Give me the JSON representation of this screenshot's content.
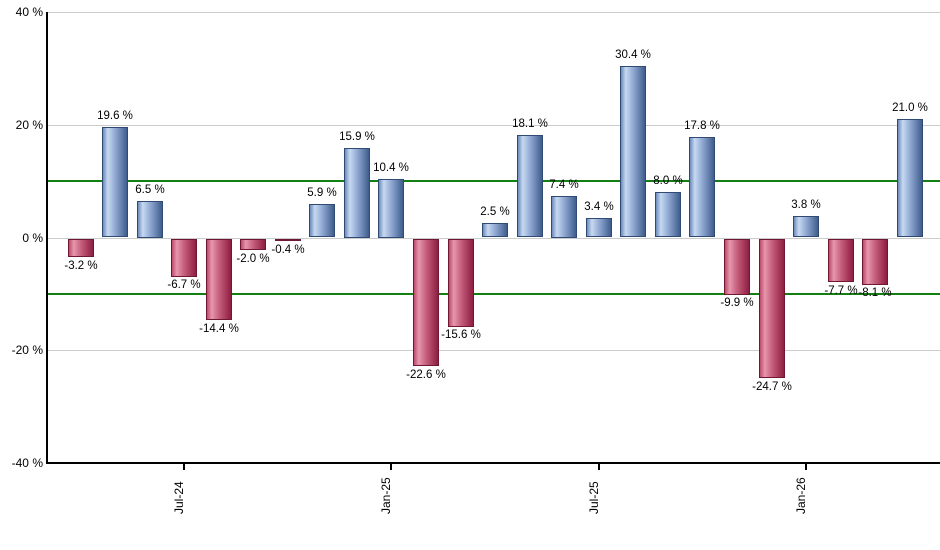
{
  "chart_data": {
    "type": "bar",
    "title": "",
    "xlabel": "",
    "ylabel": "",
    "ylim": [
      -40,
      40
    ],
    "grid": true,
    "values": [
      -3.2,
      19.6,
      6.5,
      -6.7,
      -14.4,
      -2.0,
      -0.4,
      5.9,
      15.9,
      10.4,
      -22.6,
      -15.6,
      2.5,
      18.1,
      7.4,
      3.4,
      30.4,
      8.0,
      17.8,
      -9.9,
      -24.7,
      3.8,
      -7.7,
      -8.1,
      21.0
    ],
    "labels": [
      "-3.2 %",
      "19.6 %",
      "6.5 %",
      "-6.7 %",
      "-14.4 %",
      "-2.0 %",
      "-0.4 %",
      "5.9 %",
      "15.9 %",
      "10.4 %",
      "-22.6 %",
      "-15.6 %",
      "2.5 %",
      "18.1 %",
      "7.4 %",
      "3.4 %",
      "30.4 %",
      "8.0 %",
      "17.8 %",
      "-9.9 %",
      "-24.7 %",
      "3.8 %",
      "-7.7 %",
      "-8.1 %",
      "21.0 %"
    ],
    "x_ticks": [
      {
        "index": 3,
        "label": "Jul-24"
      },
      {
        "index": 9,
        "label": "Jan-25"
      },
      {
        "index": 15,
        "label": "Jul-25"
      },
      {
        "index": 21,
        "label": "Jan-26"
      }
    ],
    "y_ticks": [
      {
        "value": 40,
        "label": "40 %"
      },
      {
        "value": 20,
        "label": "20 %"
      },
      {
        "value": 0,
        "label": "0 %"
      },
      {
        "value": -20,
        "label": "-20 %"
      },
      {
        "value": -40,
        "label": "-40 %"
      }
    ],
    "reference_lines": [
      {
        "value": 10,
        "color": "#118011"
      },
      {
        "value": -10,
        "color": "#118011"
      }
    ],
    "colors": {
      "background": "#ffffff",
      "gridline": "#cccccc",
      "axis": "#000000",
      "text": "#000000",
      "positive_gradient": [
        "#6c8bbc",
        "#c8d9f0",
        "#92abd4",
        "#3f5c8c"
      ],
      "positive_border": "#2f4a73",
      "negative_gradient": [
        "#bd4a6d",
        "#e697ac",
        "#c65f7e",
        "#8e1e41"
      ],
      "negative_border": "#701832"
    }
  }
}
